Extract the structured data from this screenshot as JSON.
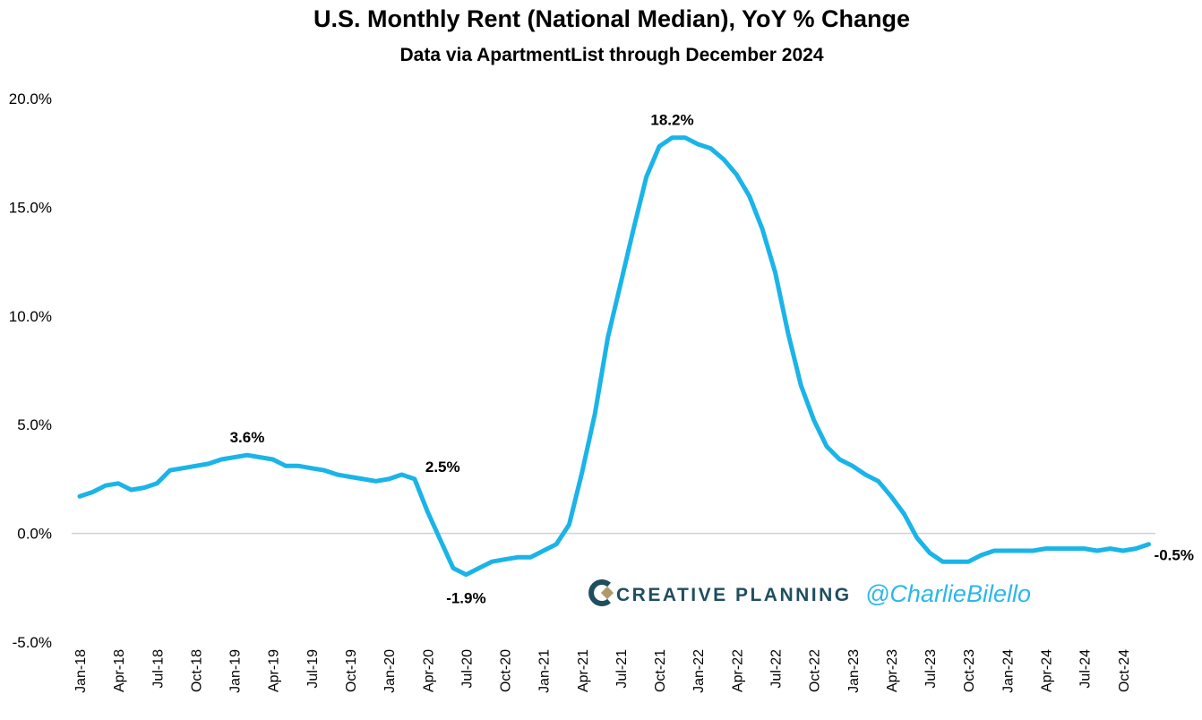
{
  "chart_data": {
    "type": "line",
    "title": "U.S. Monthly Rent (National Median), YoY % Change",
    "subtitle": "Data via ApartmentList through December 2024",
    "categories": [
      "Jan-18",
      null,
      null,
      "Apr-18",
      null,
      null,
      "Jul-18",
      null,
      null,
      "Oct-18",
      null,
      null,
      "Jan-19",
      null,
      null,
      "Apr-19",
      null,
      null,
      "Jul-19",
      null,
      null,
      "Oct-19",
      null,
      null,
      "Jan-20",
      null,
      null,
      "Apr-20",
      null,
      null,
      "Jul-20",
      null,
      null,
      "Oct-20",
      null,
      null,
      "Jan-21",
      null,
      null,
      "Apr-21",
      null,
      null,
      "Jul-21",
      null,
      null,
      "Oct-21",
      null,
      null,
      "Jan-22",
      null,
      null,
      "Apr-22",
      null,
      null,
      "Jul-22",
      null,
      null,
      "Oct-22",
      null,
      null,
      "Jan-23",
      null,
      null,
      "Apr-23",
      null,
      null,
      "Jul-23",
      null,
      null,
      "Oct-23",
      null,
      null,
      "Jan-24",
      null,
      null,
      "Apr-24",
      null,
      null,
      "Jul-24",
      null,
      null,
      "Oct-24",
      null,
      null
    ],
    "series": [
      {
        "name": "YoY % Change",
        "color": "#1ab4e8",
        "values": [
          1.7,
          1.9,
          2.2,
          2.3,
          2.0,
          2.1,
          2.3,
          2.9,
          3.0,
          3.1,
          3.2,
          3.4,
          3.5,
          3.6,
          3.5,
          3.4,
          3.1,
          3.1,
          3.0,
          2.9,
          2.7,
          2.6,
          2.5,
          2.4,
          2.5,
          2.7,
          2.5,
          1.0,
          -0.3,
          -1.6,
          -1.9,
          -1.6,
          -1.3,
          -1.2,
          -1.1,
          -1.1,
          -0.8,
          -0.5,
          0.4,
          2.8,
          5.5,
          9.0,
          11.5,
          14.0,
          16.4,
          17.8,
          18.2,
          18.2,
          17.9,
          17.7,
          17.2,
          16.5,
          15.5,
          14.0,
          12.0,
          9.2,
          6.8,
          5.2,
          4.0,
          3.4,
          3.1,
          2.7,
          2.4,
          1.7,
          0.9,
          -0.2,
          -0.9,
          -1.3,
          -1.3,
          -1.3,
          -1.0,
          -0.8,
          -0.8,
          -0.8,
          -0.8,
          -0.7,
          -0.7,
          -0.7,
          -0.7,
          -0.8,
          -0.7,
          -0.8,
          -0.7,
          -0.5
        ],
        "value_labels": [
          null,
          null,
          null,
          null,
          null,
          null,
          null,
          null,
          null,
          null,
          null,
          null,
          null,
          "3.6%",
          null,
          null,
          null,
          null,
          null,
          null,
          null,
          null,
          null,
          null,
          null,
          null,
          "2.5%",
          null,
          null,
          null,
          "-1.9%",
          null,
          null,
          null,
          null,
          null,
          null,
          null,
          null,
          null,
          null,
          null,
          null,
          null,
          null,
          null,
          "18.2%",
          null,
          null,
          null,
          null,
          null,
          null,
          null,
          null,
          null,
          null,
          null,
          null,
          null,
          null,
          null,
          null,
          null,
          null,
          null,
          null,
          null,
          null,
          null,
          null,
          null,
          null,
          null,
          null,
          null,
          null,
          null,
          null,
          null,
          null,
          null,
          null,
          "-0.5%"
        ]
      }
    ],
    "ylim": [
      -5,
      20
    ],
    "yticks": [
      {
        "value": -5,
        "label": "-5.0%"
      },
      {
        "value": 0,
        "label": "0.0%"
      },
      {
        "value": 5,
        "label": "5.0%"
      },
      {
        "value": 10,
        "label": "10.0%"
      },
      {
        "value": 15,
        "label": "15.0%"
      },
      {
        "value": 20,
        "label": "20.0%"
      }
    ],
    "zero_line": true,
    "watermark": {
      "brand": "CREATIVE PLANNING",
      "handle": "@CharlieBilello"
    }
  }
}
